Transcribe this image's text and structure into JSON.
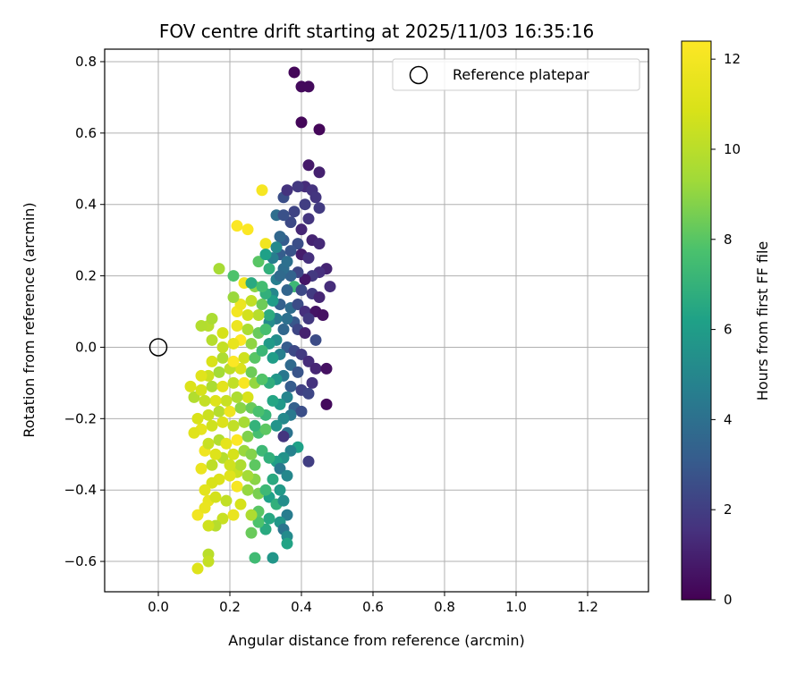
{
  "chart_data": {
    "type": "scatter",
    "title": "FOV centre drift starting at 2025/11/03 16:35:16",
    "xlabel": "Angular distance from reference (arcmin)",
    "ylabel": "Rotation from reference (arcmin)",
    "xlim": [
      -0.15,
      1.37
    ],
    "ylim": [
      -0.685,
      0.835
    ],
    "xticks": [
      0.0,
      0.2,
      0.4,
      0.6,
      0.8,
      1.0,
      1.2
    ],
    "xtick_labels": [
      "0.0",
      "0.2",
      "0.4",
      "0.6",
      "0.8",
      "1.0",
      "1.2"
    ],
    "yticks": [
      -0.6,
      -0.4,
      -0.2,
      0.0,
      0.2,
      0.4,
      0.6,
      0.8
    ],
    "ytick_labels": [
      "−0.6",
      "−0.4",
      "−0.2",
      "0.0",
      "0.2",
      "0.4",
      "0.6",
      "0.8"
    ],
    "grid": true,
    "legend": {
      "position": "top-right",
      "entries": [
        "Reference platepar"
      ]
    },
    "reference_point": {
      "x": 0.0,
      "y": 0.0,
      "label": "Reference platepar"
    },
    "colorbar": {
      "label": "Hours from first FF file",
      "colormap": "viridis",
      "range": [
        0,
        12.4
      ],
      "ticks": [
        0,
        2,
        4,
        6,
        8,
        10,
        12
      ],
      "tick_labels": [
        "0",
        "2",
        "4",
        "6",
        "8",
        "10",
        "12"
      ]
    },
    "points": [
      [
        0.38,
        0.77,
        0.2
      ],
      [
        0.4,
        0.73,
        0.3
      ],
      [
        0.42,
        0.73,
        0.3
      ],
      [
        0.4,
        0.63,
        0.2
      ],
      [
        0.45,
        0.61,
        0.2
      ],
      [
        0.42,
        0.51,
        0.8
      ],
      [
        0.45,
        0.49,
        1.0
      ],
      [
        0.41,
        0.45,
        1.4
      ],
      [
        0.43,
        0.44,
        1.6
      ],
      [
        0.44,
        0.42,
        1.7
      ],
      [
        0.45,
        0.39,
        1.9
      ],
      [
        0.41,
        0.4,
        2.0
      ],
      [
        0.35,
        0.42,
        2.6
      ],
      [
        0.38,
        0.38,
        2.2
      ],
      [
        0.42,
        0.36,
        1.7
      ],
      [
        0.37,
        0.35,
        2.4
      ],
      [
        0.4,
        0.33,
        1.2
      ],
      [
        0.43,
        0.3,
        1.1
      ],
      [
        0.45,
        0.29,
        1.3
      ],
      [
        0.35,
        0.3,
        3.1
      ],
      [
        0.39,
        0.29,
        2.6
      ],
      [
        0.4,
        0.26,
        0.9
      ],
      [
        0.42,
        0.25,
        1.5
      ],
      [
        0.37,
        0.27,
        2.8
      ],
      [
        0.34,
        0.26,
        3.2
      ],
      [
        0.47,
        0.22,
        1.1
      ],
      [
        0.45,
        0.21,
        1.5
      ],
      [
        0.43,
        0.2,
        1.8
      ],
      [
        0.41,
        0.19,
        0.7
      ],
      [
        0.39,
        0.21,
        2.3
      ],
      [
        0.37,
        0.2,
        3.4
      ],
      [
        0.35,
        0.22,
        3.9
      ],
      [
        0.33,
        0.19,
        4.6
      ],
      [
        0.38,
        0.17,
        7.3
      ],
      [
        0.4,
        0.16,
        2.4
      ],
      [
        0.43,
        0.15,
        1.9
      ],
      [
        0.45,
        0.14,
        1.2
      ],
      [
        0.48,
        0.17,
        1.4
      ],
      [
        0.36,
        0.16,
        3.5
      ],
      [
        0.32,
        0.15,
        5.0
      ],
      [
        0.34,
        0.12,
        3.3
      ],
      [
        0.37,
        0.11,
        3.8
      ],
      [
        0.39,
        0.12,
        2.5
      ],
      [
        0.41,
        0.1,
        1.5
      ],
      [
        0.44,
        0.1,
        0.6
      ],
      [
        0.46,
        0.09,
        0.5
      ],
      [
        0.42,
        0.08,
        1.8
      ],
      [
        0.38,
        0.07,
        2.9
      ],
      [
        0.36,
        0.08,
        4.0
      ],
      [
        0.33,
        0.08,
        4.4
      ],
      [
        0.31,
        0.07,
        5.2
      ],
      [
        0.35,
        0.05,
        3.6
      ],
      [
        0.39,
        0.05,
        2.3
      ],
      [
        0.41,
        0.04,
        1.0
      ],
      [
        0.44,
        0.02,
        2.5
      ],
      [
        0.33,
        0.02,
        5.3
      ],
      [
        0.31,
        0.01,
        5.9
      ],
      [
        0.36,
        0.0,
        3.1
      ],
      [
        0.38,
        -0.01,
        2.4
      ],
      [
        0.4,
        -0.02,
        1.9
      ],
      [
        0.34,
        -0.02,
        4.7
      ],
      [
        0.32,
        -0.03,
        6.0
      ],
      [
        0.37,
        -0.05,
        3.7
      ],
      [
        0.42,
        -0.04,
        1.4
      ],
      [
        0.44,
        -0.06,
        1.2
      ],
      [
        0.47,
        -0.06,
        0.5
      ],
      [
        0.39,
        -0.07,
        2.8
      ],
      [
        0.35,
        -0.08,
        4.3
      ],
      [
        0.33,
        -0.09,
        5.7
      ],
      [
        0.31,
        -0.1,
        6.8
      ],
      [
        0.37,
        -0.11,
        3.1
      ],
      [
        0.4,
        -0.12,
        2.1
      ],
      [
        0.43,
        -0.1,
        1.6
      ],
      [
        0.42,
        -0.13,
        2.3
      ],
      [
        0.36,
        -0.14,
        4.9
      ],
      [
        0.34,
        -0.16,
        5.8
      ],
      [
        0.32,
        -0.15,
        6.4
      ],
      [
        0.38,
        -0.17,
        3.3
      ],
      [
        0.4,
        -0.18,
        2.6
      ],
      [
        0.47,
        -0.16,
        0.3
      ],
      [
        0.37,
        -0.19,
        4.4
      ],
      [
        0.35,
        -0.2,
        5.1
      ],
      [
        0.3,
        -0.19,
        7.1
      ],
      [
        0.33,
        -0.22,
        5.6
      ],
      [
        0.36,
        -0.24,
        4.1
      ],
      [
        0.35,
        -0.25,
        1.7
      ],
      [
        0.39,
        -0.28,
        6.2
      ],
      [
        0.37,
        -0.29,
        4.8
      ],
      [
        0.35,
        -0.31,
        5.5
      ],
      [
        0.33,
        -0.32,
        6.1
      ],
      [
        0.42,
        -0.32,
        2.0
      ],
      [
        0.34,
        -0.34,
        4.4
      ],
      [
        0.36,
        -0.36,
        5.0
      ],
      [
        0.32,
        -0.37,
        6.6
      ],
      [
        0.34,
        -0.4,
        5.9
      ],
      [
        0.31,
        -0.42,
        6.2
      ],
      [
        0.33,
        -0.44,
        6.9
      ],
      [
        0.35,
        -0.43,
        5.3
      ],
      [
        0.36,
        -0.47,
        4.5
      ],
      [
        0.34,
        -0.49,
        5.7
      ],
      [
        0.35,
        -0.51,
        4.2
      ],
      [
        0.36,
        -0.53,
        5.2
      ],
      [
        0.36,
        -0.55,
        6.3
      ],
      [
        0.3,
        -0.51,
        6.6
      ],
      [
        0.26,
        -0.52,
        8.3
      ],
      [
        0.28,
        -0.49,
        7.8
      ],
      [
        0.31,
        -0.48,
        6.5
      ],
      [
        0.32,
        -0.59,
        5.7
      ],
      [
        0.27,
        -0.59,
        7.4
      ],
      [
        0.28,
        -0.46,
        8.0
      ],
      [
        0.26,
        -0.47,
        9.7
      ],
      [
        0.23,
        -0.44,
        10.8
      ],
      [
        0.21,
        -0.47,
        11.6
      ],
      [
        0.22,
        -0.39,
        12.1
      ],
      [
        0.25,
        -0.4,
        9.1
      ],
      [
        0.28,
        -0.41,
        8.6
      ],
      [
        0.3,
        -0.4,
        7.3
      ],
      [
        0.27,
        -0.37,
        8.9
      ],
      [
        0.25,
        -0.36,
        9.4
      ],
      [
        0.22,
        -0.35,
        10.4
      ],
      [
        0.2,
        -0.36,
        11.2
      ],
      [
        0.17,
        -0.37,
        11.0
      ],
      [
        0.15,
        -0.38,
        10.9
      ],
      [
        0.13,
        -0.4,
        11.3
      ],
      [
        0.14,
        -0.43,
        11.5
      ],
      [
        0.16,
        -0.42,
        10.7
      ],
      [
        0.19,
        -0.43,
        10.2
      ],
      [
        0.18,
        -0.48,
        10.4
      ],
      [
        0.16,
        -0.5,
        9.9
      ],
      [
        0.14,
        -0.5,
        10.6
      ],
      [
        0.11,
        -0.47,
        11.9
      ],
      [
        0.13,
        -0.45,
        11.6
      ],
      [
        0.14,
        -0.58,
        10.0
      ],
      [
        0.14,
        -0.6,
        10.3
      ],
      [
        0.11,
        -0.62,
        11.1
      ],
      [
        0.12,
        -0.34,
        11.6
      ],
      [
        0.15,
        -0.33,
        10.1
      ],
      [
        0.18,
        -0.31,
        9.9
      ],
      [
        0.21,
        -0.3,
        10.8
      ],
      [
        0.24,
        -0.29,
        9.2
      ],
      [
        0.26,
        -0.3,
        8.8
      ],
      [
        0.29,
        -0.29,
        7.3
      ],
      [
        0.31,
        -0.31,
        6.9
      ],
      [
        0.27,
        -0.33,
        8.1
      ],
      [
        0.23,
        -0.33,
        9.7
      ],
      [
        0.2,
        -0.33,
        10.6
      ],
      [
        0.16,
        -0.3,
        11.1
      ],
      [
        0.13,
        -0.29,
        11.8
      ],
      [
        0.14,
        -0.27,
        10.4
      ],
      [
        0.17,
        -0.26,
        9.8
      ],
      [
        0.19,
        -0.27,
        11.4
      ],
      [
        0.22,
        -0.26,
        12.3
      ],
      [
        0.25,
        -0.25,
        8.7
      ],
      [
        0.28,
        -0.24,
        7.6
      ],
      [
        0.3,
        -0.23,
        8.1
      ],
      [
        0.27,
        -0.22,
        7.0
      ],
      [
        0.24,
        -0.21,
        9.5
      ],
      [
        0.21,
        -0.22,
        10.2
      ],
      [
        0.18,
        -0.21,
        11.0
      ],
      [
        0.15,
        -0.22,
        10.6
      ],
      [
        0.12,
        -0.23,
        11.4
      ],
      [
        0.1,
        -0.24,
        11.2
      ],
      [
        0.11,
        -0.2,
        10.9
      ],
      [
        0.14,
        -0.19,
        10.5
      ],
      [
        0.17,
        -0.18,
        9.9
      ],
      [
        0.2,
        -0.18,
        11.8
      ],
      [
        0.23,
        -0.17,
        8.9
      ],
      [
        0.26,
        -0.17,
        8.3
      ],
      [
        0.28,
        -0.18,
        7.7
      ],
      [
        0.25,
        -0.14,
        10.9
      ],
      [
        0.22,
        -0.14,
        9.7
      ],
      [
        0.19,
        -0.15,
        10.4
      ],
      [
        0.16,
        -0.15,
        11.1
      ],
      [
        0.13,
        -0.15,
        10.3
      ],
      [
        0.1,
        -0.14,
        9.8
      ],
      [
        0.09,
        -0.11,
        11.0
      ],
      [
        0.12,
        -0.12,
        10.8
      ],
      [
        0.15,
        -0.11,
        9.6
      ],
      [
        0.18,
        -0.11,
        11.3
      ],
      [
        0.21,
        -0.1,
        10.2
      ],
      [
        0.24,
        -0.1,
        12.2
      ],
      [
        0.27,
        -0.1,
        9.1
      ],
      [
        0.29,
        -0.09,
        7.9
      ],
      [
        0.26,
        -0.07,
        8.4
      ],
      [
        0.23,
        -0.06,
        11.0
      ],
      [
        0.2,
        -0.06,
        10.1
      ],
      [
        0.17,
        -0.07,
        9.4
      ],
      [
        0.14,
        -0.08,
        10.5
      ],
      [
        0.12,
        -0.08,
        11.2
      ],
      [
        0.15,
        -0.04,
        10.9
      ],
      [
        0.18,
        -0.03,
        9.7
      ],
      [
        0.21,
        -0.04,
        12.3
      ],
      [
        0.24,
        -0.03,
        10.6
      ],
      [
        0.27,
        -0.03,
        8.0
      ],
      [
        0.29,
        -0.01,
        7.2
      ],
      [
        0.26,
        0.01,
        9.0
      ],
      [
        0.23,
        0.02,
        12.4
      ],
      [
        0.21,
        0.01,
        11.5
      ],
      [
        0.18,
        0.0,
        10.3
      ],
      [
        0.15,
        0.02,
        9.9
      ],
      [
        0.14,
        0.06,
        9.9
      ],
      [
        0.12,
        0.06,
        9.8
      ],
      [
        0.15,
        0.08,
        9.6
      ],
      [
        0.18,
        0.04,
        10.8
      ],
      [
        0.22,
        0.06,
        11.7
      ],
      [
        0.25,
        0.05,
        9.6
      ],
      [
        0.28,
        0.04,
        8.3
      ],
      [
        0.3,
        0.05,
        7.6
      ],
      [
        0.31,
        0.09,
        6.7
      ],
      [
        0.28,
        0.09,
        9.9
      ],
      [
        0.25,
        0.09,
        10.7
      ],
      [
        0.22,
        0.1,
        12.0
      ],
      [
        0.23,
        0.12,
        11.7
      ],
      [
        0.26,
        0.13,
        10.2
      ],
      [
        0.29,
        0.12,
        8.4
      ],
      [
        0.32,
        0.13,
        6.0
      ],
      [
        0.3,
        0.15,
        6.9
      ],
      [
        0.27,
        0.17,
        8.9
      ],
      [
        0.24,
        0.18,
        11.8
      ],
      [
        0.21,
        0.2,
        7.8
      ],
      [
        0.21,
        0.14,
        9.2
      ],
      [
        0.17,
        0.22,
        9.5
      ],
      [
        0.26,
        0.18,
        6.6
      ],
      [
        0.29,
        0.17,
        7.5
      ],
      [
        0.31,
        0.22,
        6.9
      ],
      [
        0.28,
        0.24,
        8.0
      ],
      [
        0.3,
        0.29,
        11.9
      ],
      [
        0.22,
        0.34,
        12.3
      ],
      [
        0.25,
        0.33,
        12.3
      ],
      [
        0.29,
        0.44,
        12.1
      ],
      [
        0.34,
        0.31,
        3.6
      ],
      [
        0.33,
        0.37,
        3.9
      ],
      [
        0.35,
        0.37,
        2.7
      ],
      [
        0.36,
        0.44,
        1.6
      ],
      [
        0.39,
        0.45,
        1.8
      ],
      [
        0.33,
        0.28,
        5.1
      ],
      [
        0.32,
        0.25,
        4.6
      ],
      [
        0.3,
        0.26,
        6.2
      ],
      [
        0.36,
        0.24,
        4.0
      ],
      [
        0.34,
        0.2,
        3.7
      ]
    ]
  }
}
